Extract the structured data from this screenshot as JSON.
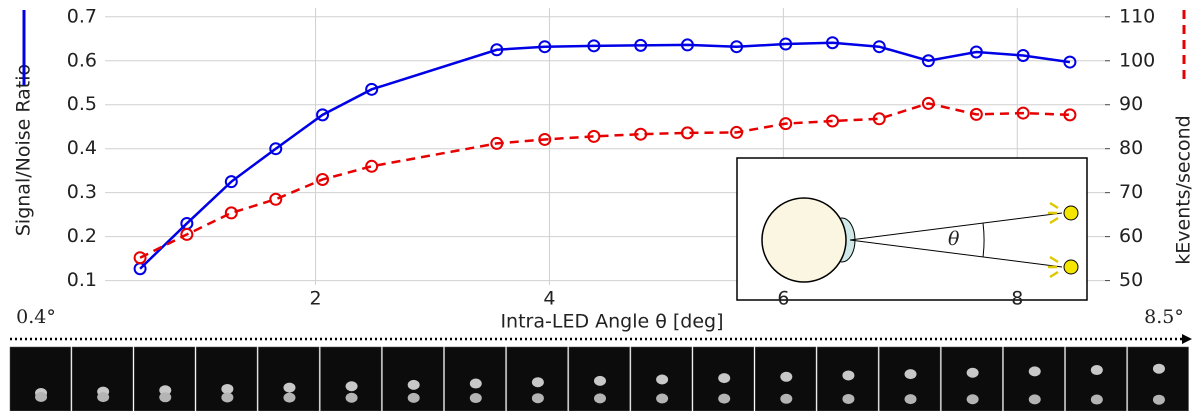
{
  "chart_data": {
    "type": "line",
    "xlabel": "Intra-LED Angle θ [deg]",
    "ylabel": "Signal/Noise Ratio",
    "y2label": "kEvents/second",
    "x": [
      0.5,
      0.9,
      1.28,
      1.66,
      2.06,
      2.48,
      3.55,
      3.96,
      4.38,
      4.78,
      5.18,
      5.6,
      6.02,
      6.42,
      6.82,
      7.24,
      7.65,
      8.05,
      8.45
    ],
    "series": [
      {
        "color": "#0000e6",
        "values": [
          0.127,
          0.23,
          0.325,
          0.4,
          0.477,
          0.535,
          0.625,
          0.632,
          0.634,
          0.635,
          0.636,
          0.632,
          0.638,
          0.641,
          0.632,
          0.6,
          0.62,
          0.612,
          0.597
        ]
      },
      {
        "color": "#e60000",
        "axis": "y2",
        "dashed": true,
        "values": [
          55.2,
          60.5,
          65.4,
          68.5,
          73.0,
          76.0,
          81.2,
          82.1,
          82.8,
          83.3,
          83.6,
          83.7,
          85.7,
          86.3,
          86.8,
          90.3,
          87.8,
          88.1,
          87.7
        ]
      }
    ],
    "xlim": [
      0.2,
      8.75
    ],
    "xticks": [
      2,
      4,
      6,
      8
    ],
    "ylim": [
      0.09,
      0.72
    ],
    "yticks": [
      0.1,
      0.2,
      0.3,
      0.4,
      0.5,
      0.6,
      0.7
    ],
    "y2lim": [
      49,
      112
    ],
    "y2ticks": [
      50,
      60,
      70,
      80,
      90,
      100,
      110
    ],
    "grid": true,
    "diagram_label": "θ",
    "strip_start_label": "0.4°",
    "strip_end_label": "8.5°"
  }
}
